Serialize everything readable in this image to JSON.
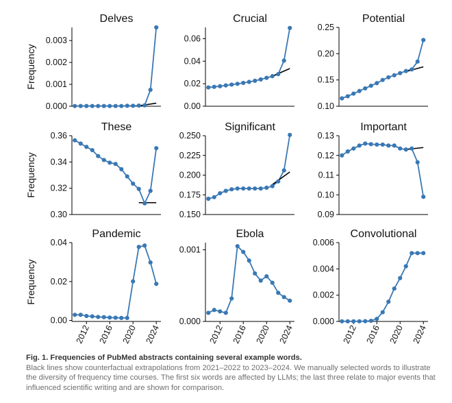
{
  "colors": {
    "series": "#3a78b4",
    "extrapolation": "#000000",
    "axis": "#000000"
  },
  "axes": {
    "ylabel": "Frequency"
  },
  "caption": {
    "title": "Fig. 1. Frequencies of PubMed abstracts containing several example words.",
    "body": "Black lines show counterfactual extrapolations from 2021–2022 to 2023–2024. We manually selected words to illustrate the diversity of frequency time courses. The first six words are affected by LLMs; the last three relate to major events that influenced scientific writing and are shown for comparison."
  },
  "chart_data": [
    {
      "type": "line",
      "title": "Delves",
      "ylabel": "Frequency",
      "xlim": [
        2009.5,
        2024.8
      ],
      "ylim": [
        0,
        0.0036
      ],
      "yticks": [
        0,
        0.001,
        0.002,
        0.003
      ],
      "yticklabels": [
        "0.000",
        "0.001",
        "0.002",
        "0.003"
      ],
      "x": [
        2010,
        2011,
        2012,
        2013,
        2014,
        2015,
        2016,
        2017,
        2018,
        2019,
        2020,
        2021,
        2022,
        2023,
        2024
      ],
      "y": [
        1e-05,
        1e-05,
        1e-05,
        1e-05,
        1e-05,
        1e-05,
        1e-05,
        1e-05,
        1e-05,
        2e-05,
        2e-05,
        3e-05,
        4e-05,
        0.00075,
        0.0036
      ],
      "extrapolation": {
        "x": [
          2021,
          2024
        ],
        "y": [
          2e-05,
          0.00014
        ]
      }
    },
    {
      "type": "line",
      "title": "Crucial",
      "xlim": [
        2009.5,
        2024.8
      ],
      "ylim": [
        0,
        0.07
      ],
      "yticks": [
        0,
        0.02,
        0.04,
        0.06
      ],
      "yticklabels": [
        "0.00",
        "0.02",
        "0.04",
        "0.06"
      ],
      "x": [
        2010,
        2011,
        2012,
        2013,
        2014,
        2015,
        2016,
        2017,
        2018,
        2019,
        2020,
        2021,
        2022,
        2023,
        2024
      ],
      "y": [
        0.0167,
        0.0172,
        0.0178,
        0.0185,
        0.0192,
        0.0199,
        0.0207,
        0.0216,
        0.0226,
        0.0238,
        0.0252,
        0.0267,
        0.0285,
        0.0405,
        0.0695
      ],
      "extrapolation": {
        "x": [
          2021,
          2024
        ],
        "y": [
          0.0267,
          0.0335
        ]
      }
    },
    {
      "type": "line",
      "title": "Potential",
      "xlim": [
        2009.5,
        2024.8
      ],
      "ylim": [
        0.1,
        0.25
      ],
      "yticks": [
        0.1,
        0.15,
        0.2,
        0.25
      ],
      "yticklabels": [
        "0.10",
        "0.15",
        "0.20",
        "0.25"
      ],
      "x": [
        2010,
        2011,
        2012,
        2013,
        2014,
        2015,
        2016,
        2017,
        2018,
        2019,
        2020,
        2021,
        2022,
        2023,
        2024
      ],
      "y": [
        0.115,
        0.119,
        0.124,
        0.129,
        0.134,
        0.139,
        0.144,
        0.15,
        0.155,
        0.159,
        0.163,
        0.167,
        0.17,
        0.185,
        0.226
      ],
      "extrapolation": {
        "x": [
          2021,
          2024
        ],
        "y": [
          0.166,
          0.175
        ]
      }
    },
    {
      "type": "line",
      "title": "These",
      "ylabel": "Frequency",
      "xlim": [
        2009.5,
        2024.8
      ],
      "ylim": [
        0.3,
        0.36
      ],
      "yticks": [
        0.3,
        0.32,
        0.34,
        0.36
      ],
      "yticklabels": [
        "0.30",
        "0.32",
        "0.34",
        "0.36"
      ],
      "x": [
        2010,
        2011,
        2012,
        2013,
        2014,
        2015,
        2016,
        2017,
        2018,
        2019,
        2020,
        2021,
        2022,
        2023,
        2024
      ],
      "y": [
        0.3565,
        0.354,
        0.3515,
        0.349,
        0.3445,
        0.3415,
        0.3395,
        0.3385,
        0.3345,
        0.329,
        0.3235,
        0.3195,
        0.3085,
        0.318,
        0.3505
      ],
      "extrapolation": {
        "x": [
          2021,
          2024
        ],
        "y": [
          0.309,
          0.309
        ]
      }
    },
    {
      "type": "line",
      "title": "Significant",
      "xlim": [
        2009.5,
        2024.8
      ],
      "ylim": [
        0.15,
        0.25
      ],
      "yticks": [
        0.15,
        0.175,
        0.2,
        0.225,
        0.25
      ],
      "yticklabels": [
        "0.150",
        "0.175",
        "0.200",
        "0.225",
        "0.250"
      ],
      "x": [
        2010,
        2011,
        2012,
        2013,
        2014,
        2015,
        2016,
        2017,
        2018,
        2019,
        2020,
        2021,
        2022,
        2023,
        2024
      ],
      "y": [
        0.17,
        0.172,
        0.177,
        0.18,
        0.182,
        0.183,
        0.183,
        0.183,
        0.183,
        0.183,
        0.184,
        0.186,
        0.192,
        0.206,
        0.251
      ],
      "extrapolation": {
        "x": [
          2021,
          2024
        ],
        "y": [
          0.188,
          0.204
        ]
      }
    },
    {
      "type": "line",
      "title": "Important",
      "xlim": [
        2009.5,
        2024.8
      ],
      "ylim": [
        0.09,
        0.13
      ],
      "yticks": [
        0.09,
        0.1,
        0.11,
        0.12,
        0.13
      ],
      "yticklabels": [
        "0.09",
        "0.10",
        "0.11",
        "0.12",
        "0.13"
      ],
      "x": [
        2010,
        2011,
        2012,
        2013,
        2014,
        2015,
        2016,
        2017,
        2018,
        2019,
        2020,
        2021,
        2022,
        2023,
        2024
      ],
      "y": [
        0.12,
        0.122,
        0.1235,
        0.125,
        0.126,
        0.1257,
        0.1255,
        0.1255,
        0.125,
        0.125,
        0.1235,
        0.123,
        0.1235,
        0.1165,
        0.099
      ],
      "extrapolation": {
        "x": [
          2021,
          2024
        ],
        "y": [
          0.123,
          0.124
        ]
      }
    },
    {
      "type": "line",
      "title": "Pandemic",
      "ylabel": "Frequency",
      "xlim": [
        2009.5,
        2024.8
      ],
      "ylim": [
        -0.0005,
        0.04
      ],
      "yticks": [
        0,
        0.02,
        0.04
      ],
      "yticklabels": [
        "0.00",
        "0.02",
        "0.04"
      ],
      "xticks": [
        2012,
        2016,
        2020,
        2024
      ],
      "xticklabels": [
        "2012",
        "2016",
        "2020",
        "2024"
      ],
      "x": [
        2010,
        2011,
        2012,
        2013,
        2014,
        2015,
        2016,
        2017,
        2018,
        2019,
        2020,
        2021,
        2022,
        2023,
        2024
      ],
      "y": [
        0.0029,
        0.0029,
        0.0023,
        0.0021,
        0.0018,
        0.0017,
        0.0015,
        0.0014,
        0.0013,
        0.0013,
        0.0201,
        0.0378,
        0.0385,
        0.0298,
        0.0188
      ]
    },
    {
      "type": "line",
      "title": "Ebola",
      "xlim": [
        2009.5,
        2024.8
      ],
      "ylim": [
        0,
        0.0011
      ],
      "yticks": [
        0,
        0.001
      ],
      "yticklabels": [
        "0.000",
        "0.001"
      ],
      "xticks": [
        2012,
        2016,
        2020,
        2024
      ],
      "xticklabels": [
        "2012",
        "2016",
        "2020",
        "2024"
      ],
      "x": [
        2010,
        2011,
        2012,
        2013,
        2014,
        2015,
        2016,
        2017,
        2018,
        2019,
        2020,
        2021,
        2022,
        2023,
        2024
      ],
      "y": [
        0.00012,
        0.00016,
        0.00014,
        0.00012,
        0.00032,
        0.00105,
        0.00097,
        0.00085,
        0.00067,
        0.00057,
        0.00063,
        0.00054,
        0.0004,
        0.00034,
        0.00029
      ]
    },
    {
      "type": "line",
      "title": "Convolutional",
      "xlim": [
        2009.5,
        2024.8
      ],
      "ylim": [
        0,
        0.006
      ],
      "yticks": [
        0,
        0.002,
        0.004,
        0.006
      ],
      "yticklabels": [
        "0.000",
        "0.002",
        "0.004",
        "0.006"
      ],
      "xticks": [
        2012,
        2016,
        2020,
        2024
      ],
      "xticklabels": [
        "2012",
        "2016",
        "2020",
        "2024"
      ],
      "x": [
        2010,
        2011,
        2012,
        2013,
        2014,
        2015,
        2016,
        2017,
        2018,
        2019,
        2020,
        2021,
        2022,
        2023,
        2024
      ],
      "y": [
        1e-05,
        1e-05,
        1e-05,
        1e-05,
        2e-05,
        5e-05,
        0.0002,
        0.0007,
        0.0015,
        0.0025,
        0.0033,
        0.0042,
        0.0052,
        0.0052,
        0.0052
      ]
    }
  ]
}
